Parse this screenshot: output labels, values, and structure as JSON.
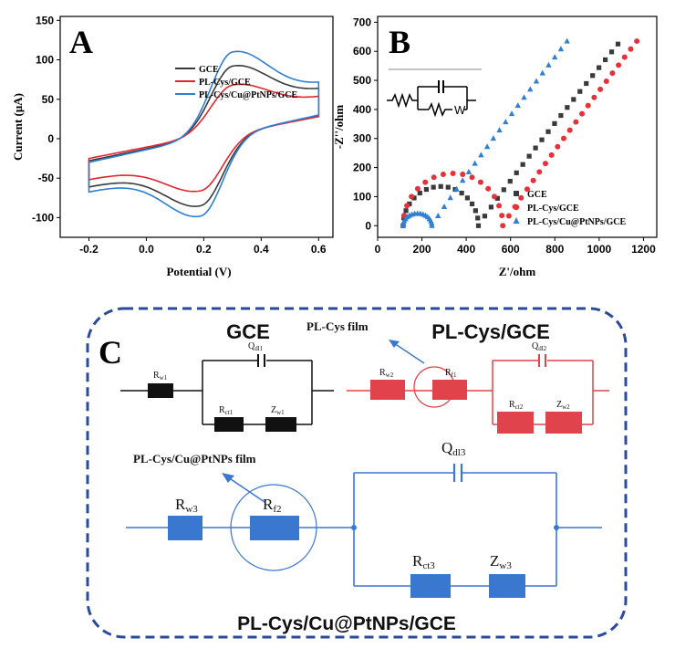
{
  "chart_data": [
    {
      "type": "line",
      "panel": "A",
      "xlabel": "Potential (V)",
      "ylabel": "Current (μA)",
      "xlim": [
        -0.3,
        0.65
      ],
      "ylim": [
        -125,
        155
      ],
      "xticks": [
        "-0.2",
        "0.0",
        "0.2",
        "0.4",
        "0.6"
      ],
      "yticks": [
        "-100",
        "-50",
        "0",
        "50",
        "100",
        "150"
      ],
      "legend_position": "top-right",
      "series": [
        {
          "name": "GCE",
          "color": "#3a3a3a",
          "peak_anodic": {
            "x": 0.3,
            "y": 92
          },
          "peak_cathodic": {
            "x": 0.19,
            "y": -85
          },
          "ends": [
            [
              -0.2,
              -30
            ],
            [
              0.6,
              31
            ]
          ]
        },
        {
          "name": "PL-Cys/GCE",
          "color": "#e0262e",
          "peak_anodic": {
            "x": 0.3,
            "y": 68
          },
          "peak_cathodic": {
            "x": 0.19,
            "y": -66
          },
          "ends": [
            [
              -0.2,
              -27
            ],
            [
              0.6,
              30
            ]
          ]
        },
        {
          "name": "PL-Cys/Cu@PtNPs/GCE",
          "color": "#2f7fd3",
          "peak_anodic": {
            "x": 0.3,
            "y": 110
          },
          "peak_cathodic": {
            "x": 0.19,
            "y": -98
          },
          "ends": [
            [
              -0.2,
              -32
            ],
            [
              0.6,
              32
            ]
          ]
        }
      ]
    },
    {
      "type": "scatter",
      "panel": "B",
      "xlabel": "Z'/ohm",
      "ylabel": "-Z''/ohm",
      "xlim": [
        0,
        1260
      ],
      "ylim": [
        -40,
        720
      ],
      "xticks": [
        "0",
        "200",
        "400",
        "600",
        "800",
        "1000",
        "1200"
      ],
      "yticks": [
        "0",
        "100",
        "200",
        "300",
        "400",
        "500",
        "600",
        "700"
      ],
      "legend_position": "bottom-right",
      "series": [
        {
          "name": "GCE",
          "color": "#3a3a3a",
          "marker": "square",
          "semicircle": {
            "x_start": 115,
            "x_end": 455,
            "height": 135
          },
          "tail_end": [
            1085,
            625
          ]
        },
        {
          "name": "PL-Cys/GCE",
          "color": "#e8303a",
          "marker": "circle",
          "semicircle": {
            "x_start": 115,
            "x_end": 565,
            "height": 180
          },
          "tail_end": [
            1170,
            635
          ]
        },
        {
          "name": "PL-Cys/Cu@PtNPs/GCE",
          "color": "#2f7fd3",
          "marker": "triangle",
          "semicircle": {
            "x_start": 115,
            "x_end": 245,
            "height": 42
          },
          "tail_end": [
            855,
            635
          ]
        }
      ]
    }
  ],
  "panels": {
    "a": "A",
    "b": "B",
    "c": "C"
  },
  "circuit_c": {
    "gce_title": "GCE",
    "plcys_title": "PL-Cys/GCE",
    "film1_label": "PL-Cys film",
    "film2_label": "PL-Cys/Cu@PtNPs film",
    "bottom_title": "PL-Cys/Cu@PtNPs/GCE",
    "gce": {
      "rw_main": "R",
      "rw_sub": "w1",
      "q_main": "Q",
      "q_sub": "dl1",
      "rct_main": "R",
      "rct_sub": "ct1",
      "zw_main": "Z",
      "zw_sub": "w1"
    },
    "pl": {
      "rw_main": "R",
      "rw_sub": "w2",
      "rf_main": "R",
      "rf_sub": "f1",
      "q_main": "Q",
      "q_sub": "dl2",
      "rct_main": "R",
      "rct_sub": "ct2",
      "zw_main": "Z",
      "zw_sub": "w2"
    },
    "cu": {
      "rw_main": "R",
      "rw_sub": "w3",
      "rf_main": "R",
      "rf_sub": "f2",
      "q_main": "Q",
      "q_sub": "dl3",
      "rct_main": "R",
      "rct_sub": "ct3",
      "zw_main": "Z",
      "zw_sub": "w3"
    },
    "colors": {
      "black": "#111111",
      "red": "#e0434c",
      "blue": "#3a78d0",
      "frame": "#2a4a9a"
    }
  },
  "inset_b": {
    "w_label": "W"
  }
}
